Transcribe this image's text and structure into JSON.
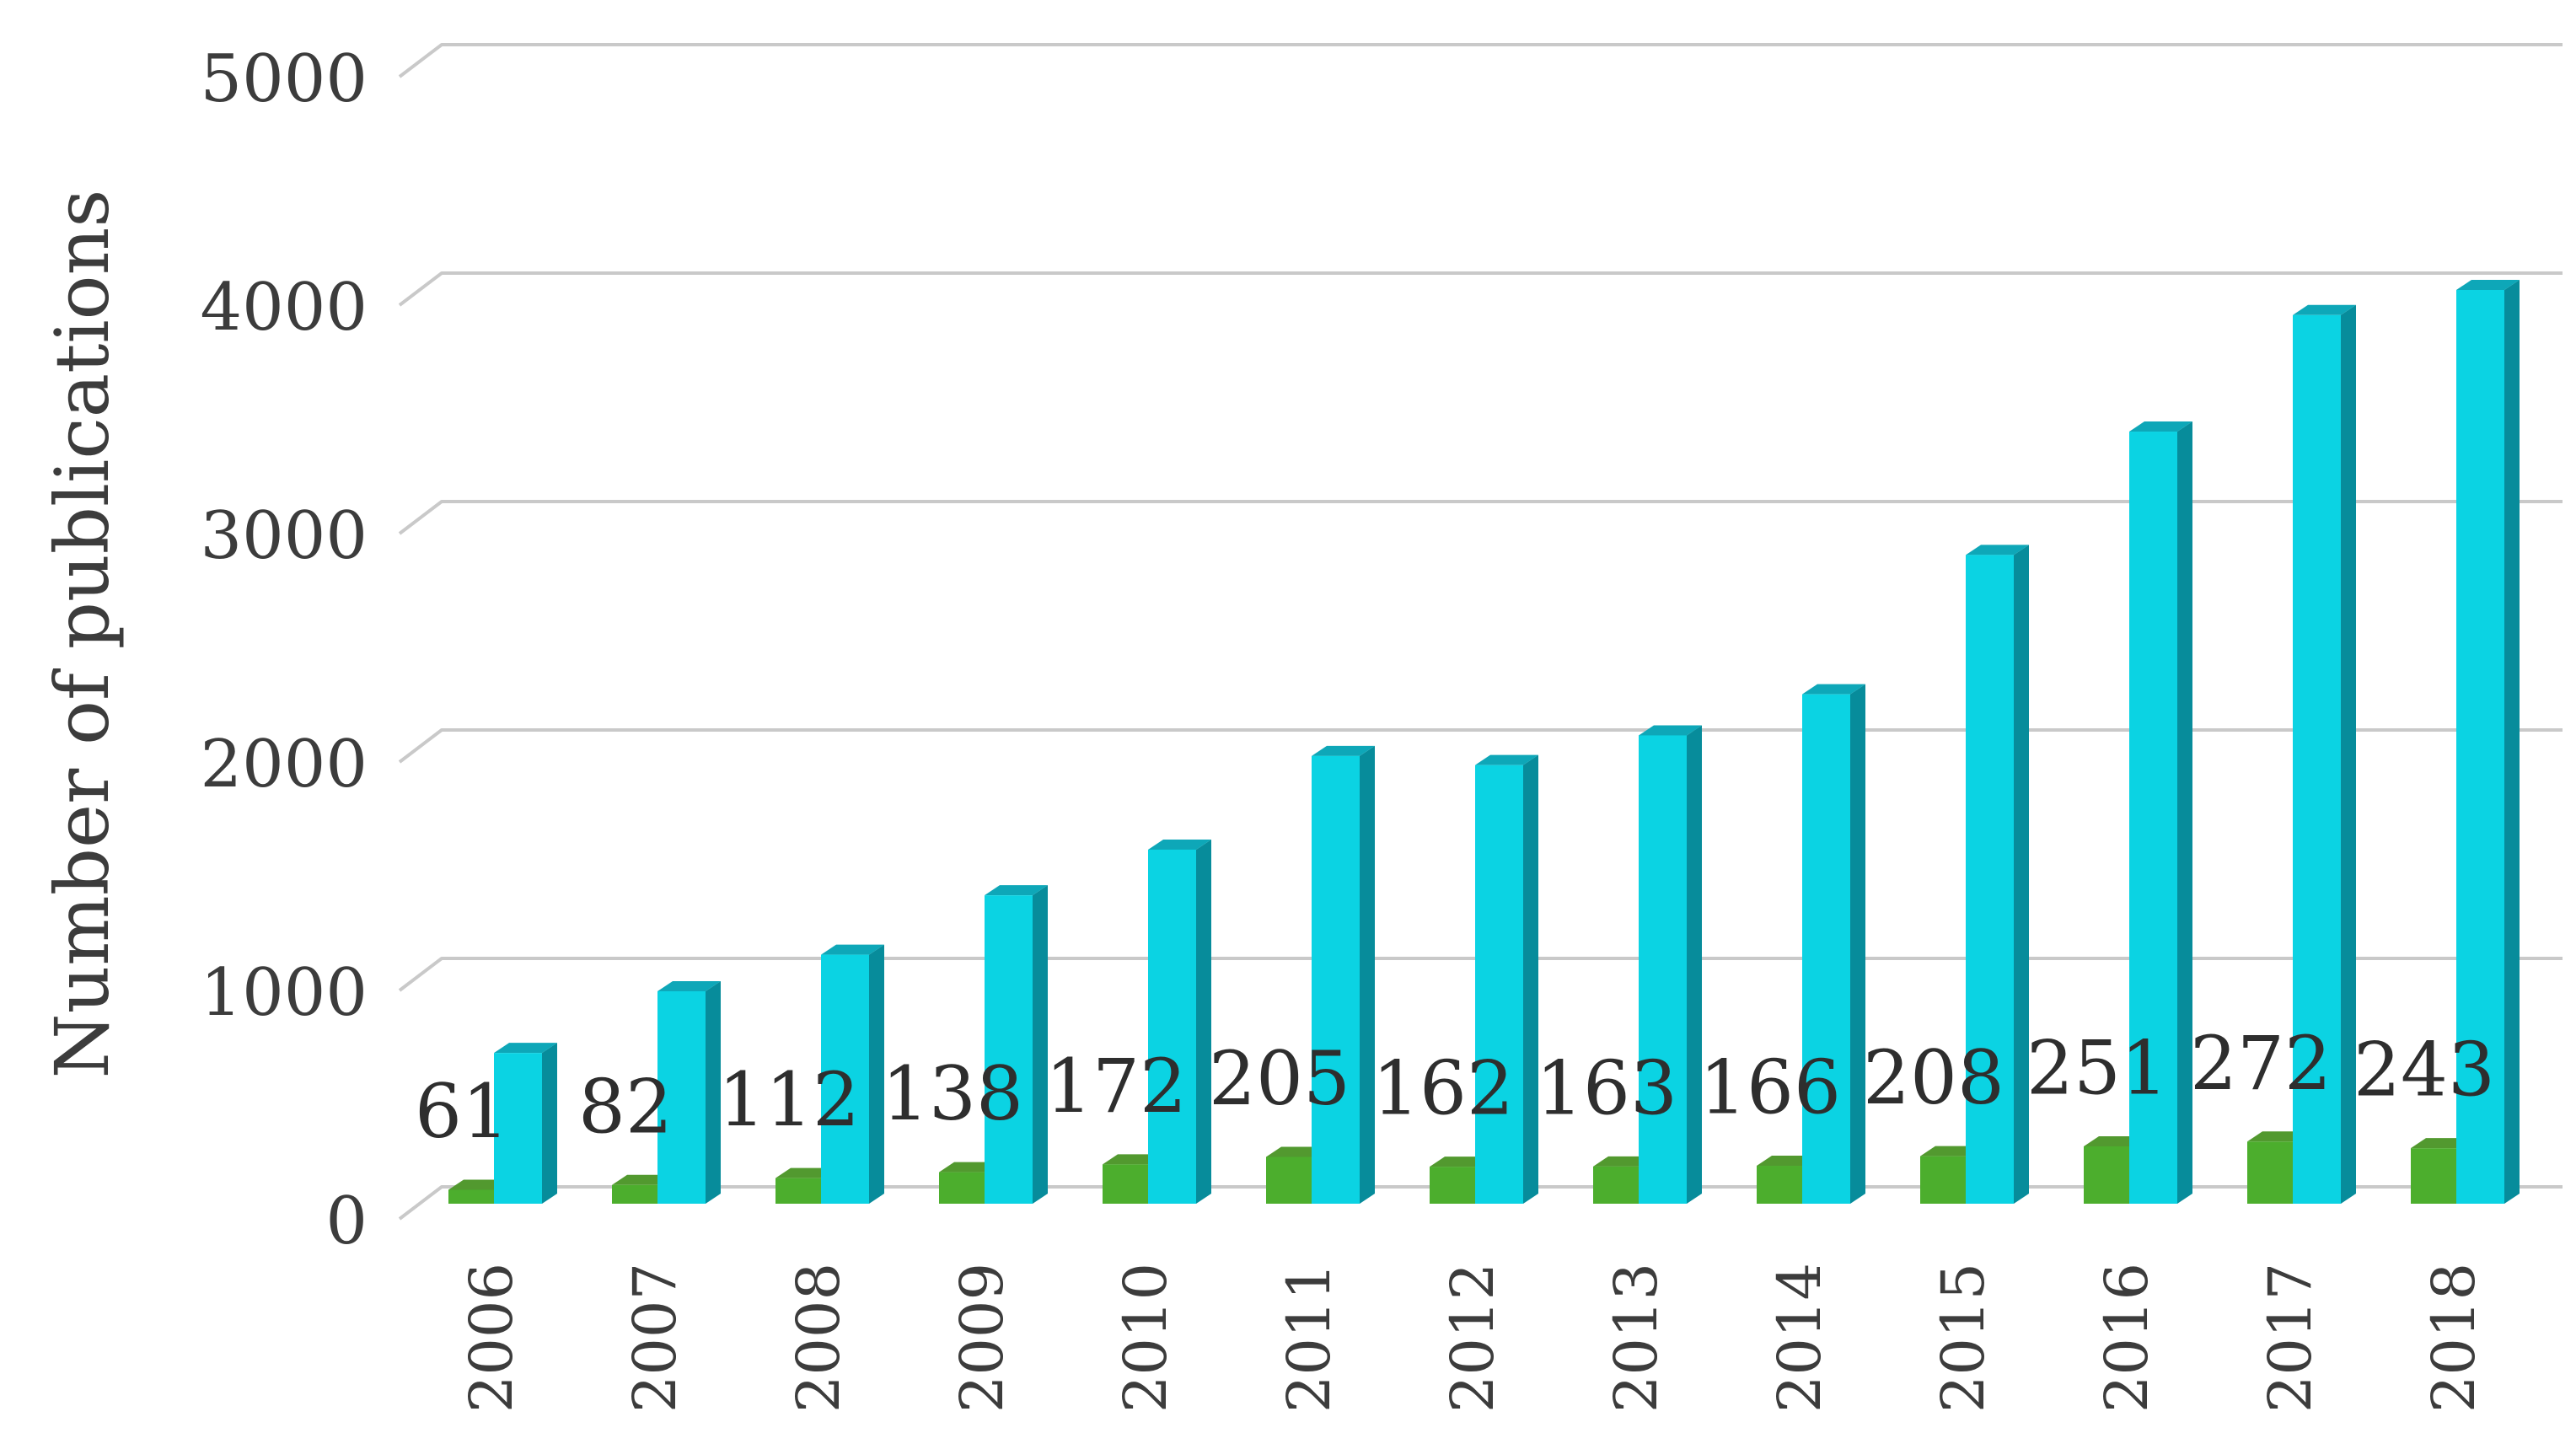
{
  "figure": {
    "title": "",
    "y_axis_title": "Number of publications"
  },
  "chart_data": {
    "type": "bar",
    "style": "3d-clustered-column",
    "title": "",
    "xlabel": "",
    "ylabel": "Number of publications",
    "categories": [
      "2006",
      "2007",
      "2008",
      "2009",
      "2010",
      "2011",
      "2012",
      "2013",
      "2014",
      "2015",
      "2016",
      "2017",
      "2018"
    ],
    "series": [
      {
        "name": "green_series",
        "color": "#4CAE2D",
        "data_labels_shown": true,
        "values": [
          61,
          82,
          112,
          138,
          172,
          205,
          162,
          163,
          166,
          208,
          251,
          272,
          243
        ]
      },
      {
        "name": "cyan_series",
        "color": "#0BD3E3",
        "data_labels_shown": false,
        "values": [
          660,
          930,
          1090,
          1350,
          1550,
          1960,
          1920,
          2050,
          2230,
          2840,
          3380,
          3890,
          4000
        ]
      }
    ],
    "ylim": [
      0,
      5000
    ],
    "yticks": [
      0,
      1000,
      2000,
      3000,
      4000,
      5000
    ],
    "grid": true,
    "legend": false
  },
  "palette": {
    "cyan_front": "#0BD3E3",
    "cyan_top": "#0EA7B8",
    "cyan_side": "#078C9B",
    "green_front": "#4CAE2D",
    "green_top": "#52992F",
    "green_side": "#3E7F22",
    "gridline": "#C9C9C9",
    "axis_text": "#3C3C3C",
    "data_label_text": "#2E2E2E",
    "background": "#FFFFFF"
  }
}
